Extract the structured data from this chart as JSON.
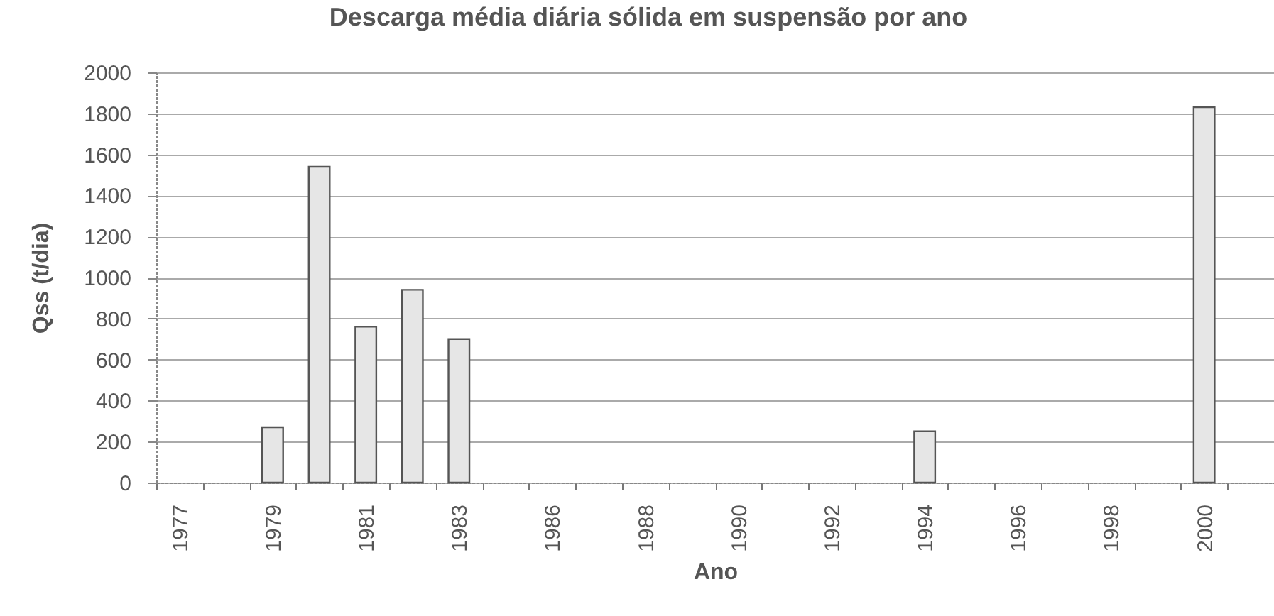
{
  "chart_data": {
    "type": "bar",
    "title": "Descarga média diária sólida em suspensão por ano",
    "xlabel": "Ano",
    "ylabel": "Qss (t/dia)",
    "categories": [
      "1977",
      null,
      "1979",
      null,
      "1981",
      null,
      "1983",
      null,
      "1986",
      null,
      "1988",
      null,
      "1990",
      null,
      "1992",
      null,
      "1994",
      null,
      "1996",
      null,
      "1998",
      null,
      "2000",
      null
    ],
    "values": [
      null,
      null,
      270,
      1540,
      760,
      940,
      700,
      null,
      null,
      null,
      null,
      null,
      null,
      null,
      null,
      null,
      250,
      null,
      null,
      null,
      null,
      null,
      1830,
      null
    ],
    "color": "#e6e6e6",
    "ylim": [
      0,
      2000
    ],
    "yticks": [
      0,
      200,
      400,
      600,
      800,
      1000,
      1200,
      1400,
      1600,
      1800,
      2000
    ],
    "grid": "y"
  }
}
